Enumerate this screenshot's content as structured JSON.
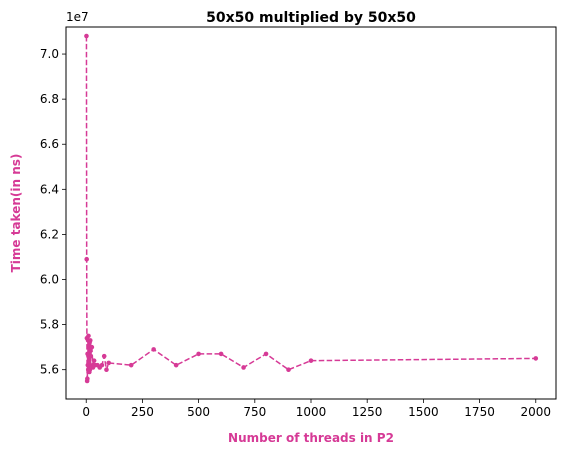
{
  "chart_data": {
    "type": "line",
    "title": "50x50 multiplied by 50x50",
    "xlabel": "Number of threads in P2",
    "ylabel": "Time taken(in ns)",
    "y_offset_label": "1e7",
    "xlim": [
      -90,
      2090
    ],
    "ylim": [
      5.47,
      7.12
    ],
    "x_ticks": [
      0,
      250,
      500,
      750,
      1000,
      1250,
      1500,
      1750,
      2000
    ],
    "x_tick_labels": [
      "0",
      "250",
      "500",
      "750",
      "1000",
      "1250",
      "1500",
      "1750",
      "2000"
    ],
    "y_ticks": [
      5.6,
      5.8,
      6.0,
      6.2,
      6.4,
      6.6,
      6.8,
      7.0
    ],
    "y_tick_labels": [
      "5.6",
      "5.8",
      "6.0",
      "6.2",
      "6.4",
      "6.6",
      "6.8",
      "7.0"
    ],
    "grid": false,
    "line_style": "dashed",
    "marker": "circle",
    "color": "#d63a96",
    "series": [
      {
        "x": [
          1,
          2,
          3,
          4,
          5,
          6,
          7,
          8,
          9,
          10,
          11,
          12,
          13,
          14,
          15,
          16,
          17,
          18,
          19,
          20,
          25,
          30,
          35,
          40,
          50,
          60,
          70,
          80,
          90,
          100,
          200,
          300,
          400,
          500,
          600,
          700,
          800,
          900,
          1000,
          2000
        ],
        "y": [
          7.08,
          6.09,
          5.74,
          5.55,
          5.56,
          5.67,
          5.62,
          5.73,
          5.6,
          5.75,
          5.66,
          5.63,
          5.71,
          5.59,
          5.72,
          5.6,
          5.69,
          5.73,
          5.62,
          5.66,
          5.7,
          5.61,
          5.64,
          5.62,
          5.62,
          5.61,
          5.62,
          5.66,
          5.6,
          5.63,
          5.62,
          5.69,
          5.62,
          5.67,
          5.67,
          5.61,
          5.67,
          5.6,
          5.64,
          5.65
        ]
      }
    ]
  }
}
